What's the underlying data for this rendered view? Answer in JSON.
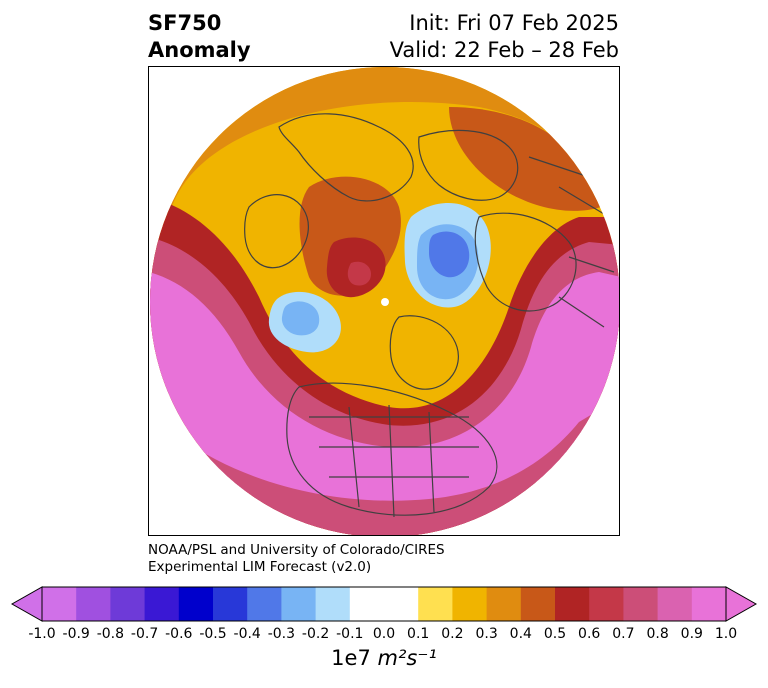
{
  "title": {
    "variable": "SF750",
    "kind": "Anomaly",
    "init": "Init: Fri 07 Feb 2025",
    "valid": "Valid: 22 Feb – 28 Feb"
  },
  "credit": {
    "line1": "NOAA/PSL and University of Colorado/CIRES",
    "line2": "Experimental LIM Forecast (v2.0)"
  },
  "colorbar": {
    "ticks": [
      "-1.0",
      "-0.9",
      "-0.8",
      "-0.7",
      "-0.6",
      "-0.5",
      "-0.4",
      "-0.3",
      "-0.2",
      "-0.1",
      "0.0",
      "0.1",
      "0.2",
      "0.3",
      "0.4",
      "0.5",
      "0.6",
      "0.7",
      "0.8",
      "0.9",
      "1.0"
    ],
    "colors": [
      "#d070e8",
      "#a050e0",
      "#6e3ad8",
      "#3a18d4",
      "#0000cc",
      "#2838d8",
      "#5078e8",
      "#78b4f4",
      "#b0ddfa",
      "#ffffff",
      "#ffffff",
      "#ffe050",
      "#f0b400",
      "#e08c10",
      "#c85818",
      "#b02424",
      "#c43848",
      "#cc4e78",
      "#da62b0",
      "#e872d8"
    ],
    "under_color": "#d070e8",
    "over_color": "#e872d8",
    "units_prefix": "1e7",
    "units_expr": "m²s⁻¹"
  },
  "map": {
    "projection": "north-polar-stereographic",
    "field": "750 hPa streamfunction anomaly",
    "colors": {
      "neg_light": "#b0ddfa",
      "neg_mid": "#78b4f4",
      "neg_deep": "#5078e8",
      "pos_01": "#ffe050",
      "pos_02": "#f0b400",
      "pos_03": "#e08c10",
      "pos_04": "#c85818",
      "pos_05": "#b02424",
      "pos_06": "#c43848",
      "pos_07": "#cc4e78",
      "pos_08": "#da62b0",
      "pos_09": "#e872d8",
      "coast": "#404040"
    }
  }
}
